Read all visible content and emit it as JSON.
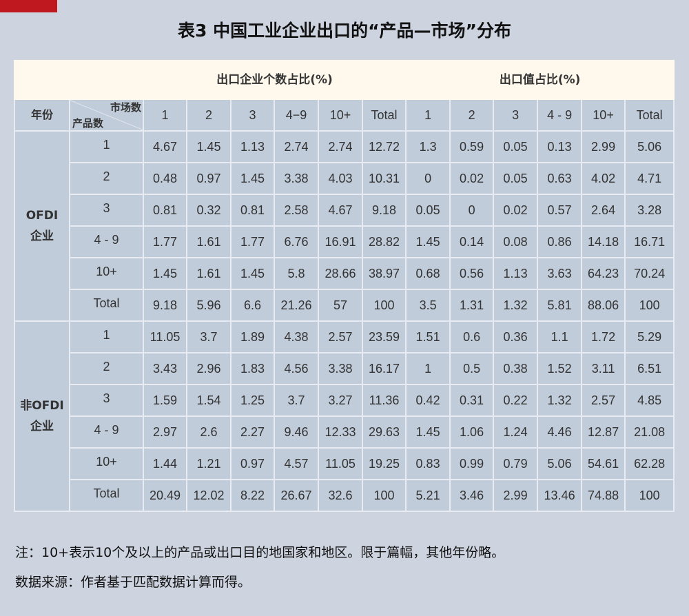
{
  "title": "表3 中国工业企业出口的“产品—市场”分布",
  "group_headers": {
    "count_share": "出口企业个数占比(%)",
    "value_share": "出口值占比(%)"
  },
  "header": {
    "year": "年份",
    "markets": "市场数",
    "products": "产品数",
    "count_cols": [
      "1",
      "2",
      "3",
      "4−9",
      "10+",
      "Total"
    ],
    "value_cols": [
      "1",
      "2",
      "3",
      "4 - 9",
      "10+",
      "Total"
    ]
  },
  "groups": [
    {
      "label_line1": "OFDI",
      "label_line2": "企业",
      "rows": [
        {
          "product": "1",
          "values": [
            "4.67",
            "1.45",
            "1.13",
            "2.74",
            "2.74",
            "12.72",
            "1.3",
            "0.59",
            "0.05",
            "0.13",
            "2.99",
            "5.06"
          ]
        },
        {
          "product": "2",
          "values": [
            "0.48",
            "0.97",
            "1.45",
            "3.38",
            "4.03",
            "10.31",
            "0",
            "0.02",
            "0.05",
            "0.63",
            "4.02",
            "4.71"
          ]
        },
        {
          "product": "3",
          "values": [
            "0.81",
            "0.32",
            "0.81",
            "2.58",
            "4.67",
            "9.18",
            "0.05",
            "0",
            "0.02",
            "0.57",
            "2.64",
            "3.28"
          ]
        },
        {
          "product": "4 - 9",
          "values": [
            "1.77",
            "1.61",
            "1.77",
            "6.76",
            "16.91",
            "28.82",
            "1.45",
            "0.14",
            "0.08",
            "0.86",
            "14.18",
            "16.71"
          ]
        },
        {
          "product": "10+",
          "values": [
            "1.45",
            "1.61",
            "1.45",
            "5.8",
            "28.66",
            "38.97",
            "0.68",
            "0.56",
            "1.13",
            "3.63",
            "64.23",
            "70.24"
          ]
        },
        {
          "product": "Total",
          "values": [
            "9.18",
            "5.96",
            "6.6",
            "21.26",
            "57",
            "100",
            "3.5",
            "1.31",
            "1.32",
            "5.81",
            "88.06",
            "100"
          ]
        }
      ]
    },
    {
      "label_line1": "非OFDI",
      "label_line2": "企业",
      "rows": [
        {
          "product": "1",
          "values": [
            "11.05",
            "3.7",
            "1.89",
            "4.38",
            "2.57",
            "23.59",
            "1.51",
            "0.6",
            "0.36",
            "1.1",
            "1.72",
            "5.29"
          ]
        },
        {
          "product": "2",
          "values": [
            "3.43",
            "2.96",
            "1.83",
            "4.56",
            "3.38",
            "16.17",
            "1",
            "0.5",
            "0.38",
            "1.52",
            "3.11",
            "6.51"
          ]
        },
        {
          "product": "3",
          "values": [
            "1.59",
            "1.54",
            "1.25",
            "3.7",
            "3.27",
            "11.36",
            "0.42",
            "0.31",
            "0.22",
            "1.32",
            "2.57",
            "4.85"
          ]
        },
        {
          "product": "4 - 9",
          "values": [
            "2.97",
            "2.6",
            "2.27",
            "9.46",
            "12.33",
            "29.63",
            "1.45",
            "1.06",
            "1.24",
            "4.46",
            "12.87",
            "21.08"
          ]
        },
        {
          "product": "10+",
          "values": [
            "1.44",
            "1.21",
            "0.97",
            "4.57",
            "11.05",
            "19.25",
            "0.83",
            "0.99",
            "0.79",
            "5.06",
            "54.61",
            "62.28"
          ]
        },
        {
          "product": "Total",
          "values": [
            "20.49",
            "12.02",
            "8.22",
            "26.67",
            "32.6",
            "100",
            "5.21",
            "3.46",
            "2.99",
            "13.46",
            "74.88",
            "100"
          ]
        }
      ]
    }
  ],
  "notes": {
    "note": "注：10+表示10个及以上的产品或出口目的地国家和地区。限于篇幅，其他年份略。",
    "source": "数据来源：作者基于匹配数据计算而得。"
  },
  "colors": {
    "accent_red": "#c0181f",
    "cell_bg": "#c1ccda",
    "header_bg": "#fef9ec",
    "page_bg": "#cdd4e0"
  }
}
